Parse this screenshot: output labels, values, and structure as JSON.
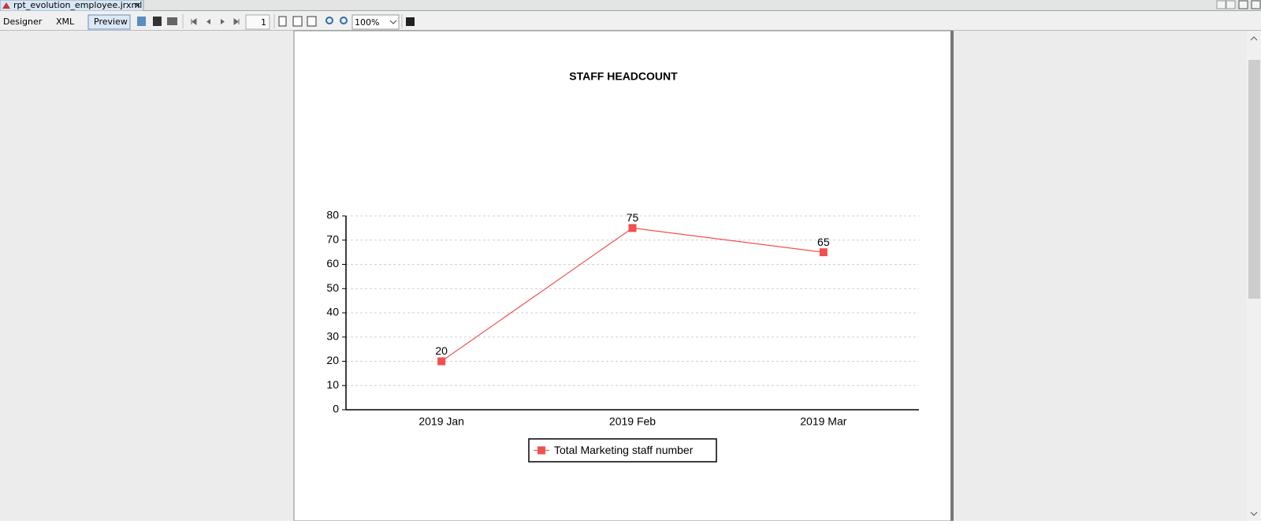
{
  "tab": {
    "title": "rpt_evolution_employee.jrxml",
    "close": "×"
  },
  "toolbar": {
    "modes": [
      "Designer",
      "XML",
      "Preview"
    ],
    "page": "1",
    "zoom": "100%"
  },
  "chart_data": {
    "type": "line",
    "title": "STAFF HEADCOUNT",
    "categories": [
      "2019 Jan",
      "2019 Feb",
      "2019 Mar"
    ],
    "series": [
      {
        "name": "Total Marketing staff number",
        "color": "#f05050",
        "values": [
          20,
          75,
          65
        ]
      }
    ],
    "ylim": [
      0,
      80
    ],
    "yticks": [
      0,
      10,
      20,
      30,
      40,
      50,
      60,
      70,
      80
    ],
    "grid": true,
    "legend": "bottom"
  }
}
